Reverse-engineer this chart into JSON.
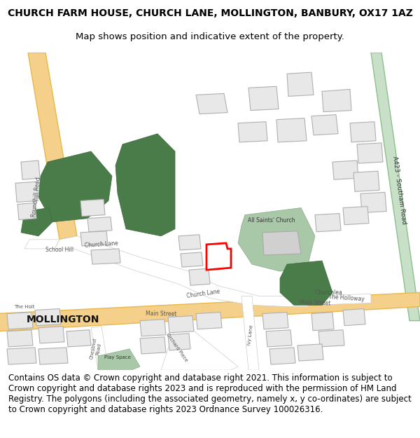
{
  "title_line1": "CHURCH FARM HOUSE, CHURCH LANE, MOLLINGTON, BANBURY, OX17 1AZ",
  "title_line2": "Map shows position and indicative extent of the property.",
  "footer": "Contains OS data © Crown copyright and database right 2021. This information is subject to Crown copyright and database rights 2023 and is reproduced with the permission of HM Land Registry. The polygons (including the associated geometry, namely x, y co-ordinates) are subject to Crown copyright and database rights 2023 Ordnance Survey 100026316.",
  "title_fontsize": 10,
  "footer_fontsize": 8.5,
  "bg_color": "#ffffff",
  "map_bg": "#f5f5f5",
  "road_yellow": "#f5d08a",
  "road_yellow_border": "#e8b84b",
  "road_green": "#c8dfc8",
  "road_green_border": "#8fbf8f",
  "building_fill": "#e8e8e8",
  "building_stroke": "#cccccc",
  "tree_fill": "#4a7c4a",
  "tree_light": "#a8c8a8",
  "highlight_stroke": "#ff0000",
  "mollington_fontsize": 14
}
